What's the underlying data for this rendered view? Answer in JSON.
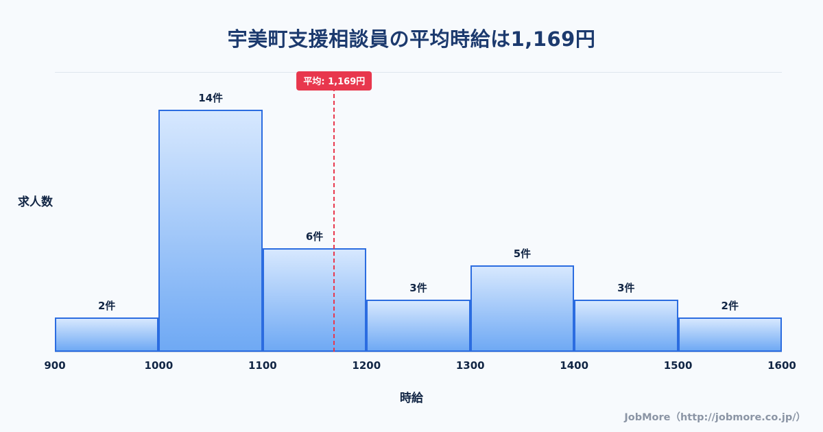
{
  "title": "宇美町支援相談員の平均時給は1,169円",
  "footer": {
    "credit": "JobMore（http://jobmore.co.jp/）"
  },
  "chart_data": {
    "type": "bar",
    "subtype": "histogram",
    "title": "宇美町支援相談員の平均時給は1,169円",
    "xlabel": "時給",
    "ylabel": "求人数",
    "bin_edges": [
      900,
      1000,
      1100,
      1200,
      1300,
      1400,
      1500,
      1600
    ],
    "x_tick_labels": [
      "900",
      "1000",
      "1100",
      "1200",
      "1300",
      "1400",
      "1500",
      "1600"
    ],
    "values": [
      2,
      14,
      6,
      3,
      5,
      3,
      2
    ],
    "bar_labels": [
      "2件",
      "14件",
      "6件",
      "3件",
      "5件",
      "3件",
      "2件"
    ],
    "mean_value": 1169,
    "mean_label": "平均: 1,169円",
    "ylim": [
      0,
      16.2
    ],
    "grid": "top-line-only",
    "legend": "none",
    "colors": {
      "background": "#f7fafd",
      "title": "#1c3a6e",
      "axis_text": "#112544",
      "bar_fill_top": "#d7e8fe",
      "bar_fill_bottom": "#6fa9f4",
      "bar_border": "#2b6ce0",
      "mean_line": "#e8374d",
      "grid_line": "#dfe6ee",
      "baseline": "#c9d4e2",
      "footer_text": "#8b95a5"
    }
  }
}
